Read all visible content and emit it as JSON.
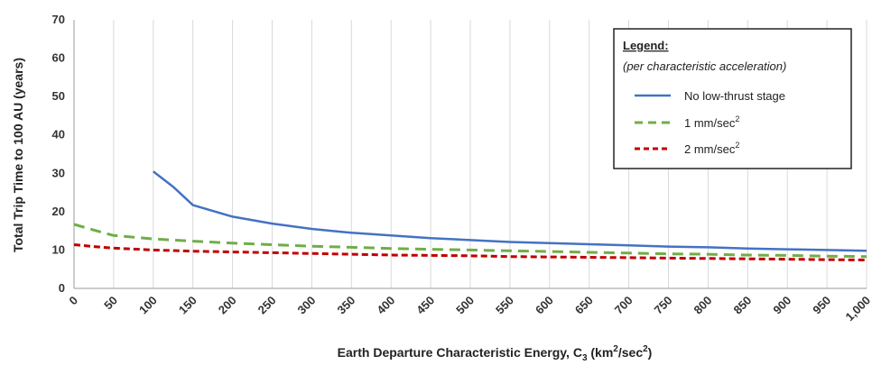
{
  "chart_data": {
    "type": "line",
    "xlabel": "Earth Departure Characteristic Energy, C",
    "xlabel_sub": "3",
    "xlabel_unit_open": " (km",
    "xlabel_unit_sup": "2",
    "xlabel_unit_mid": "/sec",
    "xlabel_unit_sup2": "2",
    "xlabel_unit_close": ")",
    "ylabel": "Total Trip Time to 100 AU (years)",
    "xlim": [
      0,
      1000
    ],
    "ylim": [
      0,
      70
    ],
    "x_ticks": [
      "0",
      "50",
      "100",
      "150",
      "200",
      "250",
      "300",
      "350",
      "400",
      "450",
      "500",
      "550",
      "600",
      "650",
      "700",
      "750",
      "800",
      "850",
      "900",
      "950",
      "1,000"
    ],
    "y_ticks": [
      "0",
      "10",
      "20",
      "30",
      "40",
      "50",
      "60",
      "70"
    ],
    "grid": "vertical",
    "legend": {
      "position": "top-right",
      "title": "Legend:",
      "subtitle": "(per characteristic acceleration)"
    },
    "series": [
      {
        "name": "No low-thrust stage",
        "color": "#4472c4",
        "style": "solid",
        "x": [
          100,
          125,
          150,
          200,
          250,
          300,
          350,
          400,
          450,
          500,
          550,
          600,
          650,
          700,
          750,
          800,
          850,
          900,
          950,
          1000
        ],
        "y": [
          30.5,
          26.5,
          21.7,
          18.7,
          16.9,
          15.5,
          14.5,
          13.8,
          13.1,
          12.6,
          12.1,
          11.8,
          11.5,
          11.2,
          10.9,
          10.7,
          10.4,
          10.2,
          10.0,
          9.8
        ]
      },
      {
        "name": "1 mm/sec",
        "name_sup": "2",
        "color": "#70ad47",
        "style": "dash",
        "x": [
          0,
          25,
          50,
          100,
          150,
          200,
          250,
          300,
          350,
          400,
          450,
          500,
          550,
          600,
          650,
          700,
          750,
          800,
          850,
          900,
          950,
          1000
        ],
        "y": [
          16.7,
          15.2,
          13.8,
          12.9,
          12.3,
          11.8,
          11.4,
          11.0,
          10.7,
          10.4,
          10.2,
          10.0,
          9.8,
          9.6,
          9.4,
          9.2,
          9.0,
          8.9,
          8.7,
          8.6,
          8.4,
          8.3
        ]
      },
      {
        "name": "2 mm/sec",
        "name_sup": "2",
        "color": "#c00000",
        "style": "dash",
        "x": [
          0,
          25,
          50,
          100,
          150,
          200,
          250,
          300,
          350,
          400,
          450,
          500,
          550,
          600,
          650,
          700,
          750,
          800,
          850,
          900,
          950,
          1000
        ],
        "y": [
          11.4,
          10.9,
          10.5,
          10.0,
          9.7,
          9.5,
          9.3,
          9.1,
          8.9,
          8.7,
          8.6,
          8.5,
          8.3,
          8.2,
          8.1,
          8.0,
          7.9,
          7.8,
          7.7,
          7.6,
          7.5,
          7.4
        ]
      }
    ]
  }
}
